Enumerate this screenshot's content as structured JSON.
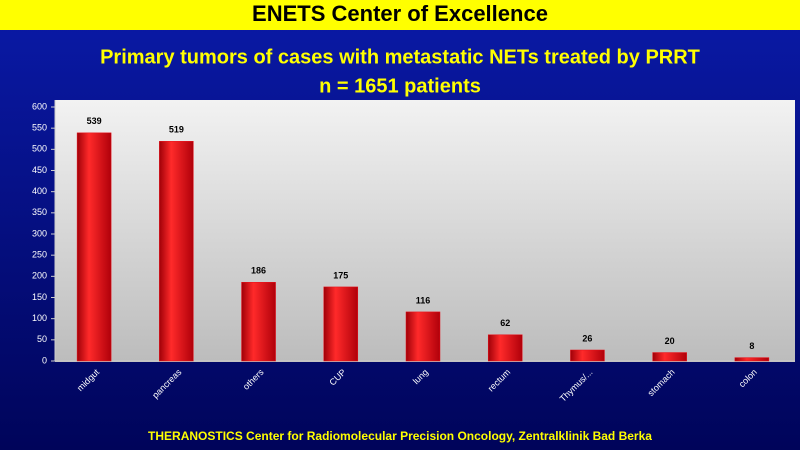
{
  "header": "ENETS Center of Excellence",
  "footer": "THERANOSTICS  Center for Radiomolecular Precision Oncology, Zentralklinik  Bad Berka",
  "chart_data": {
    "type": "bar",
    "title": "Primary tumors of cases with metastatic NETs treated by PRRT",
    "subtitle": "n = 1651 patients",
    "categories": [
      "midgut",
      "pancreas",
      "others",
      "CUP",
      "lung",
      "rectum",
      "Thymus/...",
      "stomach",
      "colon"
    ],
    "values": [
      539,
      519,
      186,
      175,
      116,
      62,
      26,
      20,
      8
    ],
    "color": "#e8101a",
    "ylim": [
      0,
      600
    ],
    "yticks": [
      0,
      50,
      100,
      150,
      200,
      250,
      300,
      350,
      400,
      450,
      500,
      550,
      600
    ],
    "grid": false
  }
}
